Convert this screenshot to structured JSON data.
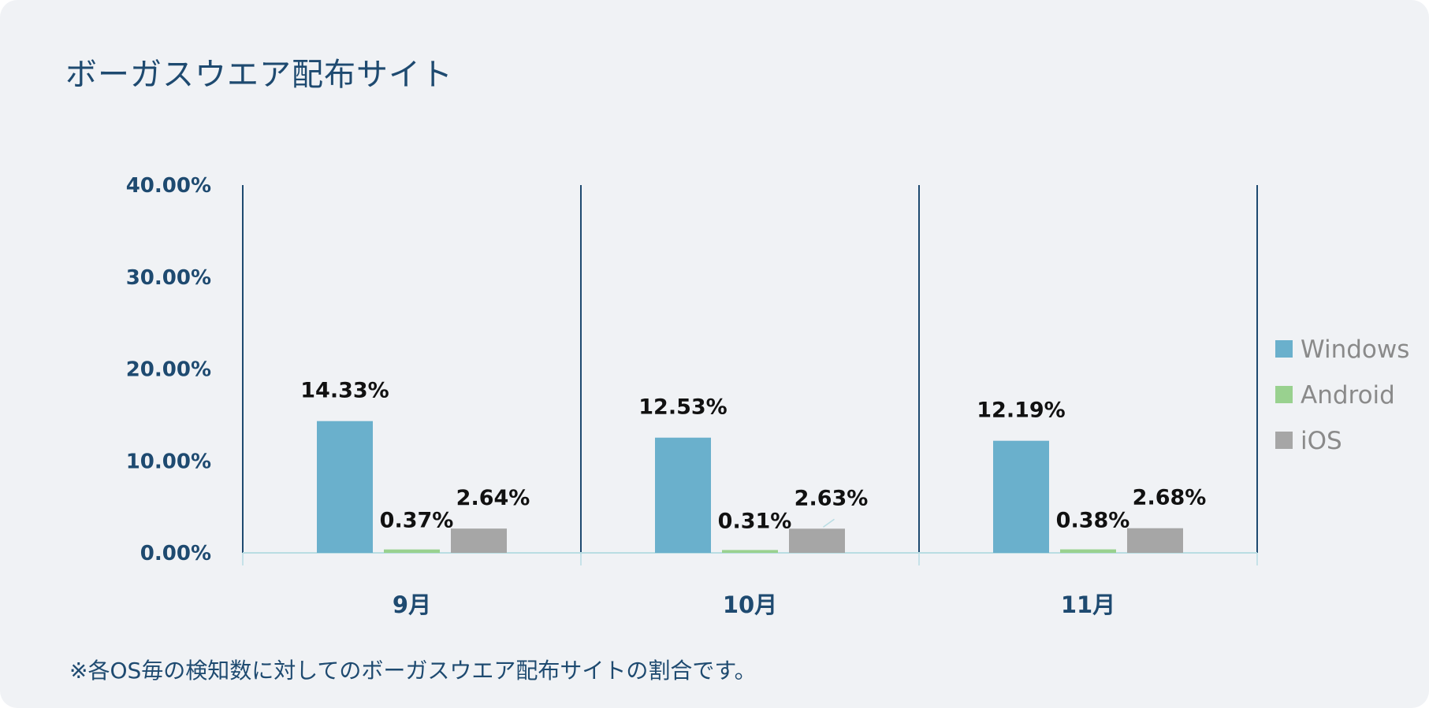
{
  "title": "ボーガスウエア配布サイト",
  "note": "※各OS毎の検知数に対してのボーガスウエア配布サイトの割合です。",
  "colors": {
    "Windows": "#6ab0cc",
    "Android": "#99d18f",
    "iOS": "#a6a6a6",
    "axis": "#1e4a70",
    "baseline": "#b9dde3"
  },
  "chart_data": {
    "type": "bar",
    "title": "ボーガスウエア配布サイト",
    "categories": [
      "9月",
      "10月",
      "11月"
    ],
    "series": [
      {
        "name": "Windows",
        "values": [
          14.33,
          12.53,
          12.19
        ],
        "labels": [
          "14.33%",
          "12.53%",
          "12.19%"
        ]
      },
      {
        "name": "Android",
        "values": [
          0.37,
          0.31,
          0.38
        ],
        "labels": [
          "0.37%",
          "0.31%",
          "0.38%"
        ]
      },
      {
        "name": "iOS",
        "values": [
          2.64,
          2.63,
          2.68
        ],
        "labels": [
          "2.64%",
          "2.63%",
          "2.68%"
        ]
      }
    ],
    "ylim": [
      0,
      40
    ],
    "yticks": [
      "0.00%",
      "10.00%",
      "20.00%",
      "30.00%",
      "40.00%"
    ],
    "ytick_values": [
      0,
      10,
      20,
      30,
      40
    ],
    "xlabel": "",
    "ylabel": "",
    "legend": "right",
    "grid": false
  }
}
